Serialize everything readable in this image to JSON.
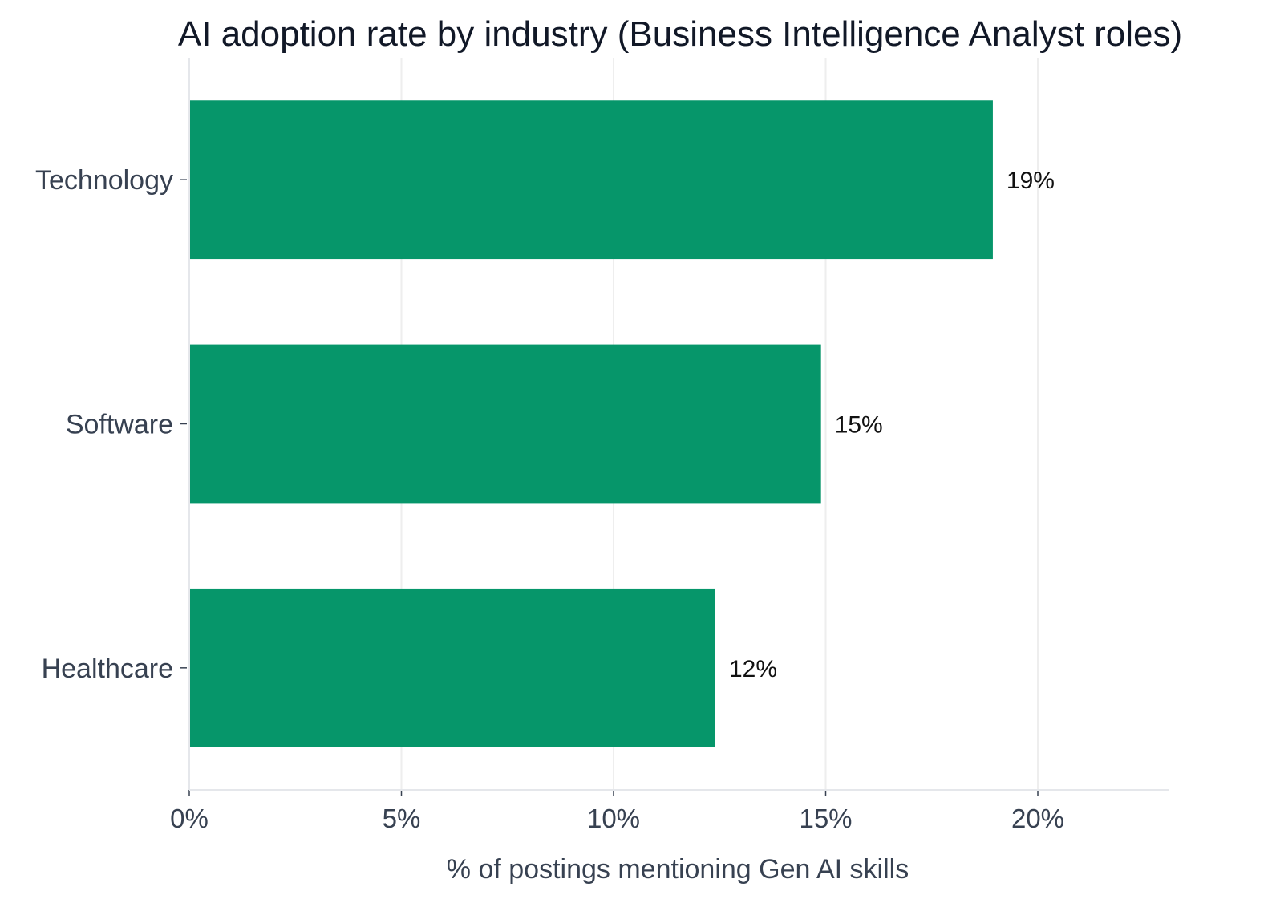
{
  "chart_data": {
    "type": "bar",
    "orientation": "horizontal",
    "title": "AI adoption rate by industry (Business Intelligence Analyst roles)",
    "xlabel": "% of postings mentioning Gen AI skills",
    "ylabel": "",
    "categories": [
      "Technology",
      "Software",
      "Healthcare"
    ],
    "values": [
      18.94,
      14.89,
      12.4
    ],
    "value_labels": [
      "19%",
      "15%",
      "12%"
    ],
    "xlim": [
      0,
      23.1
    ],
    "xticks": [
      0,
      5,
      10,
      15,
      20
    ],
    "xtick_labels": [
      "0%",
      "5%",
      "10%",
      "15%",
      "20%"
    ],
    "grid": "vertical",
    "legend": "none"
  },
  "colors": {
    "bar": "#06966a",
    "title": "#111827",
    "axis_text": "#374151",
    "grid": "#eeeeee",
    "axis_line": "#e5e7eb",
    "value_label": "#111111"
  }
}
